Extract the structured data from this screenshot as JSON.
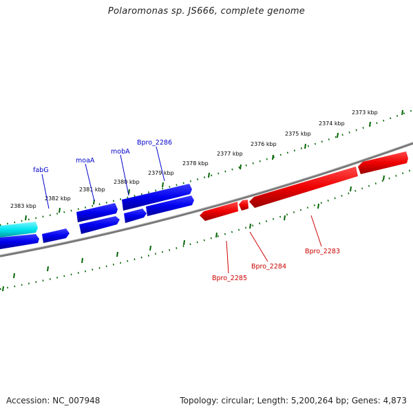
{
  "title": "Polaromonas sp. JS666, complete genome",
  "ticks": [
    {
      "label": "2373 kbp",
      "kbp": 2373
    },
    {
      "label": "2374 kbp",
      "kbp": 2374
    },
    {
      "label": "2375 kbp",
      "kbp": 2375
    },
    {
      "label": "2376 kbp",
      "kbp": 2376
    },
    {
      "label": "2377 kbp",
      "kbp": 2377
    },
    {
      "label": "2378 kbp",
      "kbp": 2378
    },
    {
      "label": "2379 kbp",
      "kbp": 2379
    },
    {
      "label": "2380 kbp",
      "kbp": 2380
    },
    {
      "label": "2381 kbp",
      "kbp": 2381
    },
    {
      "label": "2382 kbp",
      "kbp": 2382
    },
    {
      "label": "2383 kbp",
      "kbp": 2383
    }
  ],
  "forward_genes": [
    {
      "label": "fabG"
    },
    {
      "label": "moaA"
    },
    {
      "label": "mobA"
    },
    {
      "label": "Bpro_2286"
    }
  ],
  "reverse_genes": [
    {
      "label": "Bpro_2285"
    },
    {
      "label": "Bpro_2284"
    },
    {
      "label": "Bpro_2283"
    }
  ],
  "colors": {
    "forward_gene": "#0000ee",
    "forward_gene_highlight": "#00e5ee",
    "reverse_gene": "#ee0000",
    "backbone": "#808080",
    "ticks": "#006400"
  },
  "footer": {
    "accession": "Accession: NC_007948",
    "summary": "Topology: circular; Length: 5,200,264 bp; Genes: 4,873"
  }
}
